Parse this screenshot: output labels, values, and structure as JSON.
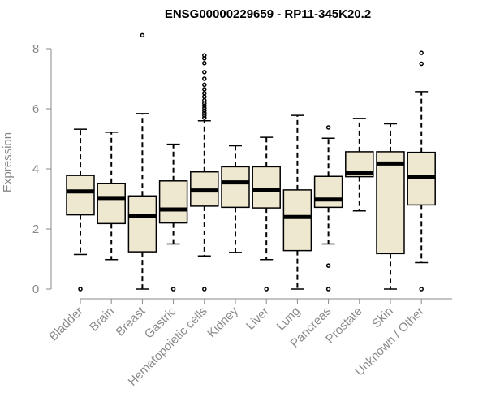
{
  "chart_data": {
    "type": "box",
    "title": "ENSG00000229659 - RP11-345K20.2",
    "xlabel": "",
    "ylabel": "Expression",
    "ylim": [
      0,
      8
    ],
    "yticks": [
      0,
      2,
      4,
      6,
      8
    ],
    "categories": [
      "Bladder",
      "Brain",
      "Breast",
      "Gastric",
      "Hematopoietic cells",
      "Kidney",
      "Liver",
      "Lung",
      "Pancreas",
      "Prostate",
      "Skin",
      "Unknown / Other"
    ],
    "boxes": [
      {
        "name": "Bladder",
        "whislo": 1.15,
        "q1": 2.47,
        "med": 3.25,
        "q3": 3.78,
        "whishi": 5.32,
        "fliers": [
          0.0
        ]
      },
      {
        "name": "Brain",
        "whislo": 0.98,
        "q1": 2.18,
        "med": 3.03,
        "q3": 3.52,
        "whishi": 5.22,
        "fliers": []
      },
      {
        "name": "Breast",
        "whislo": 0.0,
        "q1": 1.24,
        "med": 2.42,
        "q3": 3.1,
        "whishi": 5.84,
        "fliers": [
          8.45
        ]
      },
      {
        "name": "Gastric",
        "whislo": 1.5,
        "q1": 2.2,
        "med": 2.65,
        "q3": 3.6,
        "whishi": 4.82,
        "fliers": [
          0.0
        ]
      },
      {
        "name": "Hematopoietic cells",
        "whislo": 1.1,
        "q1": 2.76,
        "med": 3.28,
        "q3": 3.9,
        "whishi": 5.6,
        "fliers": [
          0.0,
          5.7,
          5.78,
          5.86,
          5.94,
          6.02,
          6.1,
          6.18,
          6.28,
          6.4,
          6.52,
          6.65,
          6.8,
          7.0,
          7.22,
          7.52,
          7.68,
          7.78
        ]
      },
      {
        "name": "Kidney",
        "whislo": 1.22,
        "q1": 2.72,
        "med": 3.55,
        "q3": 4.07,
        "whishi": 4.77,
        "fliers": []
      },
      {
        "name": "Liver",
        "whislo": 0.98,
        "q1": 2.7,
        "med": 3.3,
        "q3": 4.07,
        "whishi": 5.05,
        "fliers": [
          0.0
        ]
      },
      {
        "name": "Lung",
        "whislo": 0.0,
        "q1": 1.28,
        "med": 2.4,
        "q3": 3.3,
        "whishi": 5.78,
        "fliers": []
      },
      {
        "name": "Pancreas",
        "whislo": 1.5,
        "q1": 2.72,
        "med": 2.98,
        "q3": 3.75,
        "whishi": 5.02,
        "fliers": [
          0.0,
          0.78,
          5.38
        ]
      },
      {
        "name": "Prostate",
        "whislo": 2.6,
        "q1": 3.74,
        "med": 3.88,
        "q3": 4.57,
        "whishi": 5.68,
        "fliers": []
      },
      {
        "name": "Skin",
        "whislo": 0.0,
        "q1": 1.18,
        "med": 4.18,
        "q3": 4.57,
        "whishi": 5.5,
        "fliers": []
      },
      {
        "name": "Unknown / Other",
        "whislo": 0.88,
        "q1": 2.8,
        "med": 3.72,
        "q3": 4.55,
        "whishi": 6.57,
        "fliers": [
          0.0,
          7.5,
          7.86
        ]
      }
    ]
  }
}
